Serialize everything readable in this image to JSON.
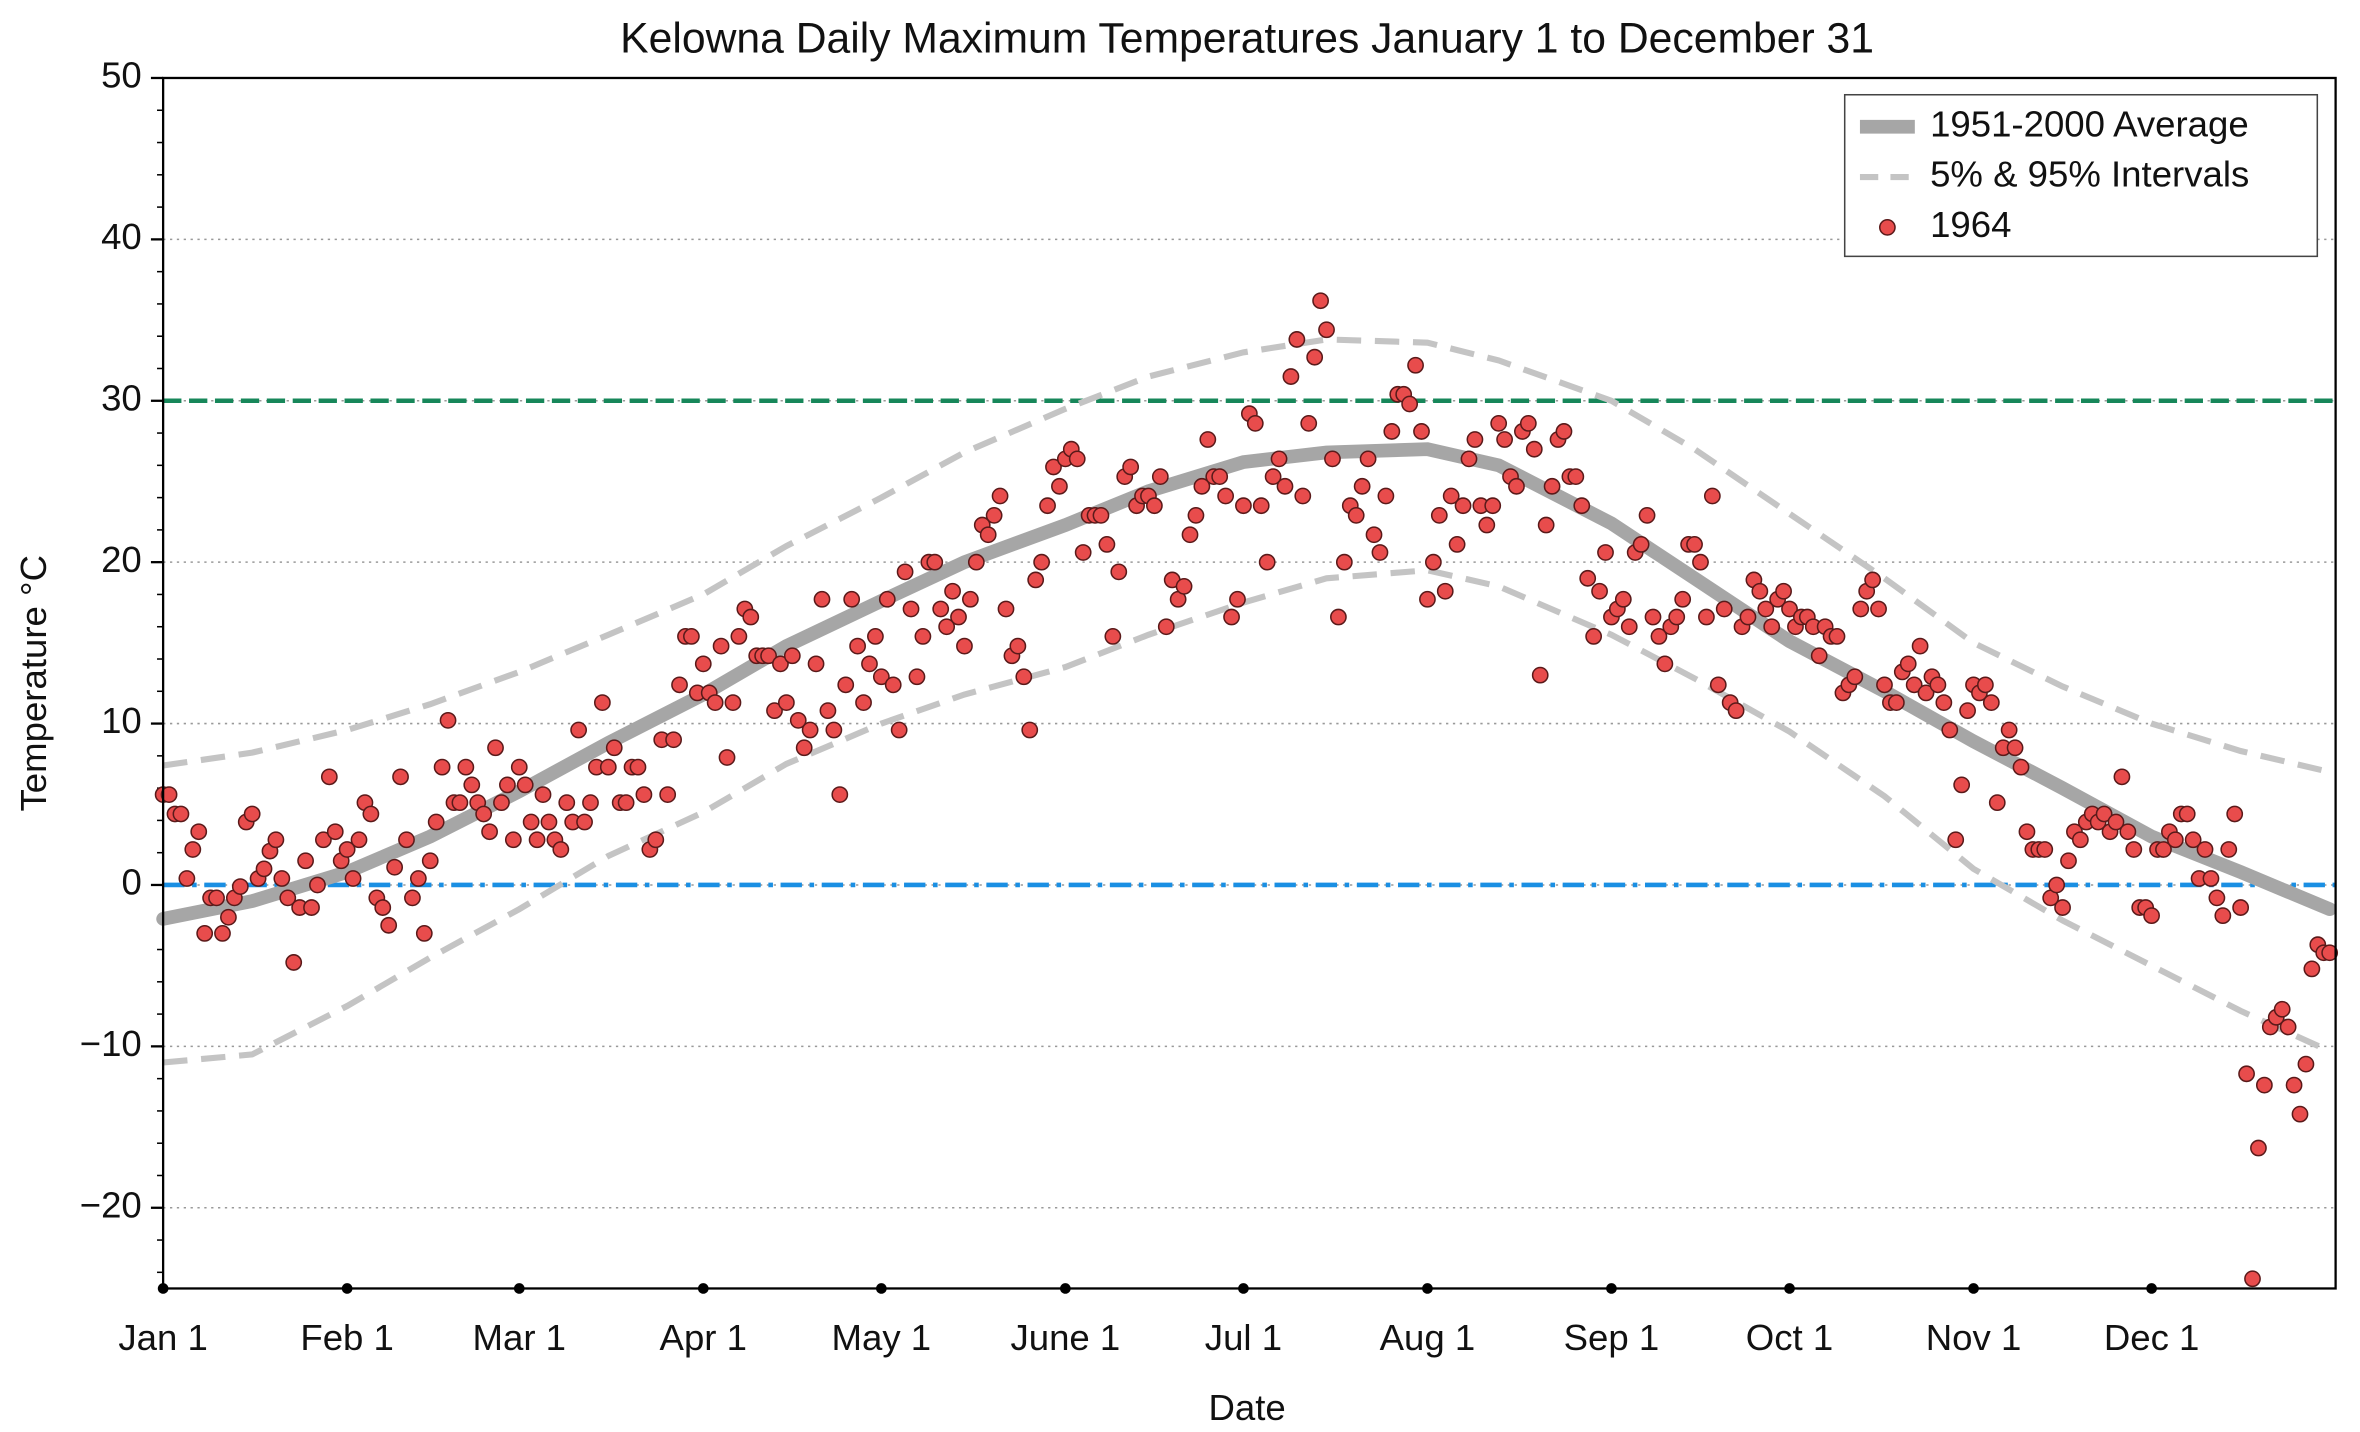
{
  "chart_data": {
    "type": "line",
    "title": "Kelowna Daily Maximum Temperatures January 1 to December 31",
    "x_label": "Date",
    "y_label": "Temperature °C",
    "xlim": [
      0,
      366
    ],
    "ylim": [
      -25,
      50
    ],
    "xticks": [
      {
        "value": 0,
        "label": "Jan 1"
      },
      {
        "value": 31,
        "label": "Feb 1"
      },
      {
        "value": 60,
        "label": "Mar 1"
      },
      {
        "value": 91,
        "label": "Apr 1"
      },
      {
        "value": 121,
        "label": "May 1"
      },
      {
        "value": 152,
        "label": "June 1"
      },
      {
        "value": 182,
        "label": "Jul 1"
      },
      {
        "value": 213,
        "label": "Aug 1"
      },
      {
        "value": 244,
        "label": "Sep 1"
      },
      {
        "value": 274,
        "label": "Oct 1"
      },
      {
        "value": 305,
        "label": "Nov 1"
      },
      {
        "value": 335,
        "label": "Dec 1"
      }
    ],
    "yticks": [
      {
        "value": -20,
        "label": "−20"
      },
      {
        "value": -10,
        "label": "−10"
      },
      0,
      10,
      20,
      30,
      40,
      50
    ],
    "grid": true,
    "legend": "upper right",
    "reference_lines": [
      {
        "value": 30,
        "color": "#17875a"
      },
      {
        "value": 0,
        "color": "#1a8fe3"
      }
    ],
    "series": [
      {
        "name": "1951-2000 Average",
        "type": "line",
        "color": "#a6a6a6",
        "x": [
          0,
          15,
          31,
          45,
          60,
          75,
          91,
          105,
          121,
          135,
          152,
          166,
          182,
          196,
          213,
          225,
          244,
          258,
          274,
          290,
          305,
          320,
          335,
          350,
          365
        ],
        "values": [
          -2.1,
          -1,
          0.8,
          3,
          5.8,
          8.8,
          11.8,
          14.8,
          17.6,
          20,
          22.3,
          24.4,
          26.2,
          26.8,
          27,
          26,
          22.4,
          19,
          15.1,
          12,
          8.9,
          6,
          3,
          0.8,
          -1.5
        ]
      },
      {
        "name": "5% & 95% Intervals",
        "type": "band",
        "color": "#c4c4c4",
        "x": [
          0,
          15,
          31,
          45,
          60,
          75,
          91,
          105,
          121,
          135,
          152,
          166,
          182,
          196,
          213,
          225,
          244,
          258,
          274,
          290,
          305,
          320,
          335,
          350,
          365
        ],
        "upper": [
          7.4,
          8.2,
          9.6,
          11.2,
          13.2,
          15.5,
          18,
          21,
          24,
          26.8,
          29.5,
          31.5,
          33,
          33.8,
          33.6,
          32.5,
          30,
          27,
          23,
          19,
          15,
          12.3,
          10,
          8.3,
          7
        ],
        "lower": [
          -11,
          -10.5,
          -7.5,
          -4.5,
          -1.5,
          1.8,
          4.5,
          7.5,
          10,
          11.8,
          13.5,
          15.5,
          17.5,
          19,
          19.5,
          18.5,
          15.5,
          12.8,
          9.5,
          5.5,
          1,
          -2.2,
          -5,
          -7.8,
          -10.3
        ]
      },
      {
        "name": "1964",
        "type": "scatter",
        "color": "#e84c4c",
        "x": [
          0,
          1,
          2,
          3,
          4,
          5,
          6,
          7,
          8,
          9,
          10,
          11,
          12,
          13,
          14,
          15,
          16,
          17,
          18,
          19,
          20,
          21,
          22,
          23,
          24,
          25,
          26,
          27,
          28,
          29,
          30,
          31,
          32,
          33,
          34,
          35,
          36,
          37,
          38,
          39,
          40,
          41,
          42,
          43,
          44,
          45,
          46,
          47,
          48,
          49,
          50,
          51,
          52,
          53,
          54,
          55,
          56,
          57,
          58,
          59,
          60,
          61,
          62,
          63,
          64,
          65,
          66,
          67,
          68,
          69,
          70,
          71,
          72,
          73,
          74,
          75,
          76,
          77,
          78,
          79,
          80,
          81,
          82,
          83,
          84,
          85,
          86,
          87,
          88,
          89,
          90,
          91,
          92,
          93,
          94,
          95,
          96,
          97,
          98,
          99,
          100,
          101,
          102,
          103,
          104,
          105,
          106,
          107,
          108,
          109,
          110,
          111,
          112,
          113,
          114,
          115,
          116,
          117,
          118,
          119,
          120,
          121,
          122,
          123,
          124,
          125,
          126,
          127,
          128,
          129,
          130,
          131,
          132,
          133,
          134,
          135,
          136,
          137,
          138,
          139,
          140,
          141,
          142,
          143,
          144,
          145,
          146,
          147,
          148,
          149,
          150,
          151,
          152,
          153,
          154,
          155,
          156,
          157,
          158,
          159,
          160,
          161,
          162,
          163,
          164,
          165,
          166,
          167,
          168,
          169,
          170,
          171,
          172,
          173,
          174,
          175,
          176,
          177,
          178,
          179,
          180,
          181,
          182,
          183,
          184,
          185,
          186,
          187,
          188,
          189,
          190,
          191,
          192,
          193,
          194,
          195,
          196,
          197,
          198,
          199,
          200,
          201,
          202,
          203,
          204,
          205,
          206,
          207,
          208,
          209,
          210,
          211,
          212,
          213,
          214,
          215,
          216,
          217,
          218,
          219,
          220,
          221,
          222,
          223,
          224,
          225,
          226,
          227,
          228,
          229,
          230,
          231,
          232,
          233,
          234,
          235,
          236,
          237,
          238,
          239,
          240,
          241,
          242,
          243,
          244,
          245,
          246,
          247,
          248,
          249,
          250,
          251,
          252,
          253,
          254,
          255,
          256,
          257,
          258,
          259,
          260,
          261,
          262,
          263,
          264,
          265,
          266,
          267,
          268,
          269,
          270,
          271,
          272,
          273,
          274,
          275,
          276,
          277,
          278,
          279,
          280,
          281,
          282,
          283,
          284,
          285,
          286,
          287,
          288,
          289,
          290,
          291,
          292,
          293,
          294,
          295,
          296,
          297,
          298,
          299,
          300,
          301,
          302,
          303,
          304,
          305,
          306,
          307,
          308,
          309,
          310,
          311,
          312,
          313,
          314,
          315,
          316,
          317,
          318,
          319,
          320,
          321,
          322,
          323,
          324,
          325,
          326,
          327,
          328,
          329,
          330,
          331,
          332,
          333,
          334,
          335,
          336,
          337,
          338,
          339,
          340,
          341,
          342,
          343,
          344,
          345,
          346,
          347,
          348,
          349,
          350,
          351,
          352,
          353,
          354,
          355,
          356,
          357,
          358,
          359,
          360,
          361,
          362,
          363,
          364,
          365
        ],
        "values": [
          5.6,
          5.6,
          4.4,
          4.4,
          0.4,
          2.2,
          3.3,
          -3,
          -0.8,
          -0.8,
          -3,
          -2,
          -0.8,
          -0.1,
          3.9,
          4.4,
          0.4,
          1,
          2.1,
          2.8,
          0.4,
          -0.8,
          -4.8,
          -1.4,
          1.5,
          -1.4,
          0,
          2.8,
          6.7,
          3.3,
          1.5,
          2.2,
          0.4,
          2.8,
          5.1,
          4.4,
          -0.8,
          -1.4,
          -2.5,
          1.1,
          6.7,
          2.8,
          -0.8,
          0.4,
          -3,
          1.5,
          3.9,
          7.3,
          10.2,
          5.1,
          5.1,
          7.3,
          6.2,
          5.1,
          4.4,
          3.3,
          8.5,
          5.1,
          6.2,
          2.8,
          7.3,
          6.2,
          3.9,
          2.8,
          5.6,
          3.9,
          2.8,
          2.2,
          5.1,
          3.9,
          9.6,
          3.9,
          5.1,
          7.3,
          11.3,
          7.3,
          8.5,
          5.1,
          5.1,
          7.3,
          7.3,
          5.6,
          2.2,
          2.8,
          9,
          5.6,
          9,
          12.4,
          15.4,
          15.4,
          11.9,
          13.7,
          11.9,
          11.3,
          14.8,
          7.9,
          11.3,
          15.4,
          17.1,
          16.6,
          14.2,
          14.2,
          14.2,
          10.8,
          13.7,
          11.3,
          14.2,
          10.2,
          8.5,
          9.6,
          13.7,
          17.7,
          10.8,
          9.6,
          5.6,
          12.4,
          17.7,
          14.8,
          11.3,
          13.7,
          15.4,
          12.9,
          17.7,
          12.4,
          9.6,
          19.4,
          17.1,
          12.9,
          15.4,
          20,
          20,
          17.1,
          16,
          18.2,
          16.6,
          14.8,
          17.7,
          20,
          22.3,
          21.7,
          22.9,
          24.1,
          17.1,
          14.2,
          14.8,
          12.9,
          9.6,
          18.9,
          20,
          23.5,
          25.9,
          24.7,
          26.4,
          27,
          26.4,
          20.6,
          22.9,
          22.9,
          22.9,
          21.1,
          15.4,
          19.4,
          25.3,
          25.9,
          23.5,
          24.1,
          24.1,
          23.5,
          25.3,
          16,
          18.9,
          17.7,
          18.5,
          21.7,
          22.9,
          24.7,
          27.6,
          25.3,
          25.3,
          24.1,
          16.6,
          17.7,
          23.5,
          29.2,
          28.6,
          23.5,
          20,
          25.3,
          26.4,
          24.7,
          31.5,
          33.8,
          24.1,
          28.6,
          32.7,
          36.2,
          34.4,
          26.4,
          16.6,
          20,
          23.5,
          22.9,
          24.7,
          26.4,
          21.7,
          20.6,
          24.1,
          28.1,
          30.4,
          30.4,
          29.8,
          32.2,
          28.1,
          17.7,
          20,
          22.9,
          18.2,
          24.1,
          21.1,
          23.5,
          26.4,
          27.6,
          23.5,
          22.3,
          23.5,
          28.6,
          27.6,
          25.3,
          24.7,
          28.1,
          28.6,
          27,
          13,
          22.3,
          24.7,
          27.6,
          28.1,
          25.3,
          25.3,
          23.5,
          19,
          15.4,
          18.2,
          20.6,
          16.6,
          17.1,
          17.7,
          16,
          20.6,
          21.1,
          22.9,
          16.6,
          15.4,
          13.7,
          16,
          16.6,
          17.7,
          21.1,
          21.1,
          20,
          16.6,
          24.1,
          12.4,
          17.1,
          11.3,
          10.8,
          16,
          16.6,
          18.9,
          18.2,
          17.1,
          16,
          17.7,
          18.2,
          17.1,
          16,
          16.6,
          16.6,
          16,
          14.2,
          16,
          15.4,
          15.4,
          11.9,
          12.4,
          12.9,
          17.1,
          18.2,
          18.9,
          17.1,
          12.4,
          11.3,
          11.3,
          13.2,
          13.7,
          12.4,
          14.8,
          11.9,
          12.9,
          12.4,
          11.3,
          9.6,
          2.8,
          6.2,
          10.8,
          12.4,
          11.9,
          12.4,
          11.3,
          5.1,
          8.5,
          9.6,
          8.5,
          7.3,
          3.3,
          2.2,
          2.2,
          2.2,
          -0.8,
          0,
          -1.4,
          1.5,
          3.3,
          2.8,
          3.9,
          4.4,
          3.9,
          4.4,
          3.3,
          3.9,
          6.7,
          3.3,
          2.2,
          -1.4,
          -1.4,
          -1.9,
          2.2,
          2.2,
          3.3,
          2.8,
          4.4,
          4.4,
          2.8,
          0.4,
          2.2,
          0.4,
          -0.8,
          -1.9,
          2.2,
          4.4,
          -1.4,
          -11.7,
          -24.4,
          -16.3,
          -12.4,
          -8.8,
          -8.2,
          -7.7,
          -8.8,
          -12.4,
          -14.2,
          -11.1,
          -5.2,
          -3.7,
          -4.2,
          -4.2
        ]
      }
    ]
  }
}
